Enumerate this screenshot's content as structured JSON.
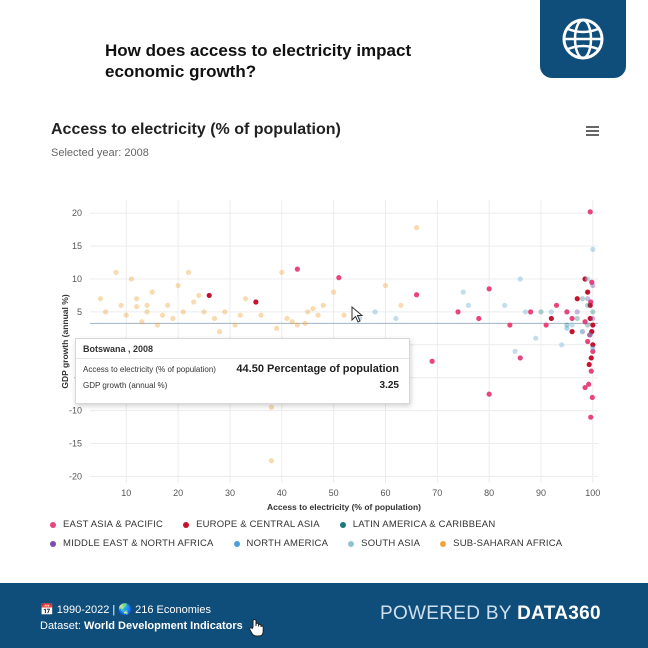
{
  "page": {
    "headline": "How does access to electricity impact economic growth?",
    "logo_icon": "globe-icon"
  },
  "chart_header": {
    "title": "Access to electricity (% of population)",
    "subtitle": "Selected year: 2008",
    "menu_icon": "hamburger-menu-icon"
  },
  "tooltip": {
    "title": "Botswana , 2008",
    "row1_label": "Access to electricity (% of population)",
    "row1_value": "44.50 Percentage of population",
    "row2_label": "GDP growth (annual %)",
    "row2_value": "3.25"
  },
  "legend": [
    {
      "label": "EAST ASIA & PACIFIC",
      "color": "#e8457a"
    },
    {
      "label": "EUROPE & CENTRAL ASIA",
      "color": "#c4122f"
    },
    {
      "label": "LATIN AMERICA & CARIBBEAN",
      "color": "#1a7b7b"
    },
    {
      "label": "MIDDLE EAST & NORTH AFRICA",
      "color": "#7a4fb0"
    },
    {
      "label": "NORTH AMERICA",
      "color": "#4aa3d8"
    },
    {
      "label": "SOUTH ASIA",
      "color": "#8fc3d8"
    },
    {
      "label": "SUB-SAHARAN AFRICA",
      "color": "#f0a63c"
    }
  ],
  "footer": {
    "period": "1990-2022",
    "economies": "216 Economies",
    "dataset_label": "Dataset:",
    "dataset_name": "World Development Indicators",
    "powered_prefix": "POWERED BY",
    "powered_brand": "DATA360"
  },
  "chart_data": {
    "type": "scatter",
    "title": "Access to electricity (% of population)",
    "subtitle": "Selected year: 2008",
    "xlabel": "Access to electricity (% of population)",
    "ylabel": "GDP growth (annual %)",
    "xlim": [
      3,
      101
    ],
    "ylim": [
      -21,
      22
    ],
    "xticks": [
      10,
      20,
      30,
      40,
      50,
      60,
      70,
      80,
      90,
      100
    ],
    "yticks": [
      -20,
      -15,
      -10,
      -5,
      0,
      5,
      10,
      15,
      20
    ],
    "grid": true,
    "legend_position": "bottom",
    "highlight": {
      "name": "Botswana",
      "year": 2008,
      "x": 44.5,
      "y": 3.25
    },
    "series": [
      {
        "name": "East Asia & Pacific",
        "color": "#e8457a",
        "opacity": 1,
        "points": [
          [
            99.5,
            20.2
          ],
          [
            99.8,
            9.5
          ],
          [
            99.6,
            6.5
          ],
          [
            98.5,
            3.5
          ],
          [
            99.4,
            1.5
          ],
          [
            100,
            -1
          ],
          [
            99.7,
            -4
          ],
          [
            99.2,
            -6
          ],
          [
            99.9,
            -8
          ],
          [
            99.6,
            -11
          ],
          [
            93,
            6
          ],
          [
            95,
            5
          ],
          [
            91,
            3
          ],
          [
            88,
            5
          ],
          [
            84,
            3
          ],
          [
            86,
            -2
          ],
          [
            80,
            8.5
          ],
          [
            74,
            5
          ],
          [
            78,
            4
          ],
          [
            98.5,
            -6.5
          ],
          [
            96,
            4
          ],
          [
            99,
            0.5
          ],
          [
            80,
            -7.5
          ],
          [
            69,
            -2.5
          ],
          [
            43,
            11.5
          ],
          [
            51,
            10.2
          ],
          [
            66,
            7.6
          ]
        ]
      },
      {
        "name": "Europe & Central Asia",
        "color": "#c4122f",
        "opacity": 1,
        "points": [
          [
            98.5,
            10
          ],
          [
            99,
            8
          ],
          [
            99.5,
            4
          ],
          [
            99.8,
            2
          ],
          [
            100,
            0
          ],
          [
            99.7,
            -2
          ],
          [
            99.3,
            -3
          ],
          [
            97,
            7
          ],
          [
            96,
            2
          ],
          [
            92,
            4
          ],
          [
            99.5,
            6
          ],
          [
            100,
            3
          ],
          [
            26,
            7.5
          ],
          [
            35,
            6.5
          ]
        ]
      },
      {
        "name": "Latin America & Caribbean",
        "color": "#1a7b7b",
        "opacity": 0.35,
        "points": [
          [
            99,
            6
          ],
          [
            98,
            7
          ],
          [
            97,
            4
          ],
          [
            99,
            3
          ],
          [
            100,
            5
          ],
          [
            95,
            3
          ],
          [
            90,
            5
          ]
        ]
      },
      {
        "name": "Middle East & North Africa",
        "color": "#7a4fb0",
        "opacity": 0.4,
        "points": [
          [
            99,
            7
          ],
          [
            100,
            4
          ],
          [
            98,
            2
          ],
          [
            100,
            9
          ],
          [
            97,
            5
          ]
        ]
      },
      {
        "name": "North America",
        "color": "#4aa3d8",
        "opacity": 0.45,
        "points": [
          [
            99.5,
            1.5
          ],
          [
            100,
            -0.5
          ],
          [
            95,
            2.5
          ]
        ]
      },
      {
        "name": "South Asia",
        "color": "#8fc3d8",
        "opacity": 0.55,
        "points": [
          [
            86,
            10
          ],
          [
            92,
            5
          ],
          [
            83,
            6
          ],
          [
            75,
            8
          ],
          [
            96,
            3
          ],
          [
            87,
            5
          ],
          [
            76,
            6
          ],
          [
            89,
            1
          ],
          [
            58,
            5
          ],
          [
            62,
            4
          ],
          [
            55,
            4
          ],
          [
            94,
            0
          ],
          [
            98,
            2
          ],
          [
            99,
            10
          ],
          [
            100,
            14.5
          ],
          [
            85,
            -1
          ]
        ]
      },
      {
        "name": "Sub-Saharan Africa",
        "color": "#f0a63c",
        "opacity": 0.4,
        "points": [
          [
            5,
            7
          ],
          [
            8,
            11
          ],
          [
            11,
            10
          ],
          [
            9,
            6
          ],
          [
            12,
            5.8
          ],
          [
            15,
            8
          ],
          [
            14,
            5
          ],
          [
            17,
            4.5
          ],
          [
            18,
            6
          ],
          [
            20,
            9
          ],
          [
            23,
            6.5
          ],
          [
            24,
            7.5
          ],
          [
            22,
            11
          ],
          [
            27,
            4
          ],
          [
            29,
            5
          ],
          [
            31,
            3
          ],
          [
            32,
            4.5
          ],
          [
            33,
            7
          ],
          [
            39,
            2.5
          ],
          [
            40,
            11
          ],
          [
            41,
            4
          ],
          [
            42,
            3.5
          ],
          [
            45,
            5
          ],
          [
            47,
            4.5
          ],
          [
            48,
            6
          ],
          [
            50,
            8
          ],
          [
            52,
            4.5
          ],
          [
            60,
            9
          ],
          [
            63,
            6
          ],
          [
            66,
            17.8
          ],
          [
            38,
            -9.5
          ],
          [
            38,
            -17.6
          ],
          [
            12,
            7
          ],
          [
            14,
            6
          ],
          [
            16,
            3
          ],
          [
            19,
            4
          ],
          [
            21,
            5
          ],
          [
            25,
            5
          ],
          [
            28,
            2
          ],
          [
            6,
            5
          ],
          [
            10,
            4.5
          ],
          [
            13,
            3.5
          ],
          [
            36,
            4.5
          ],
          [
            43,
            3
          ],
          [
            46,
            5.5
          ],
          [
            44.5,
            3.25
          ]
        ]
      }
    ]
  }
}
